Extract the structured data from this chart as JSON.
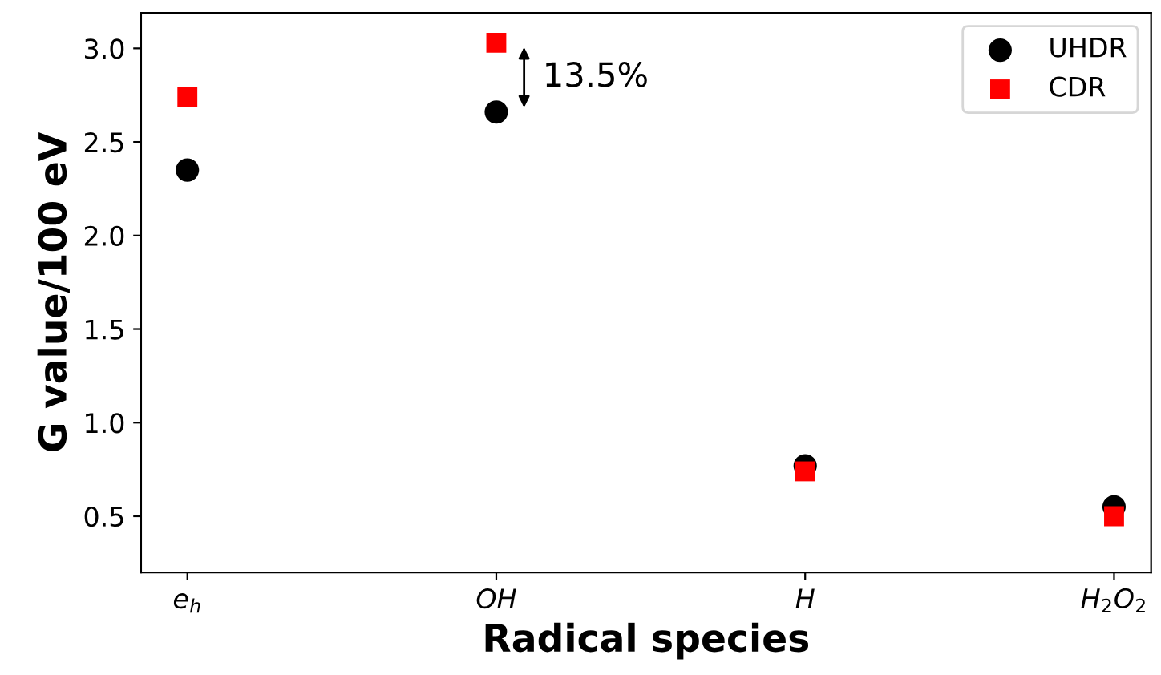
{
  "chart_data": {
    "type": "scatter",
    "xlabel": "Radical species",
    "ylabel": "G value/100 eV",
    "categories": [
      "e$_{h}$",
      "OH",
      "H",
      "H$_{2}$O$_{2}$"
    ],
    "series": [
      {
        "name": "UHDR",
        "color": "#000000",
        "marker": "circle",
        "values": [
          2.35,
          2.66,
          0.77,
          0.55
        ]
      },
      {
        "name": "CDR",
        "color": "#ff0000",
        "marker": "square",
        "values": [
          2.74,
          3.03,
          0.74,
          0.5
        ]
      }
    ],
    "ylim": [
      0.2,
      3.19
    ],
    "yticks": [
      0.5,
      {
        "value": 1,
        "label": "1.0"
      },
      1.5,
      {
        "value": 2,
        "label": "2.0"
      },
      2.5,
      {
        "value": 3,
        "label": "3.0"
      }
    ],
    "annotations": [
      "13.5%"
    ],
    "legend": "top right",
    "grid": false
  }
}
